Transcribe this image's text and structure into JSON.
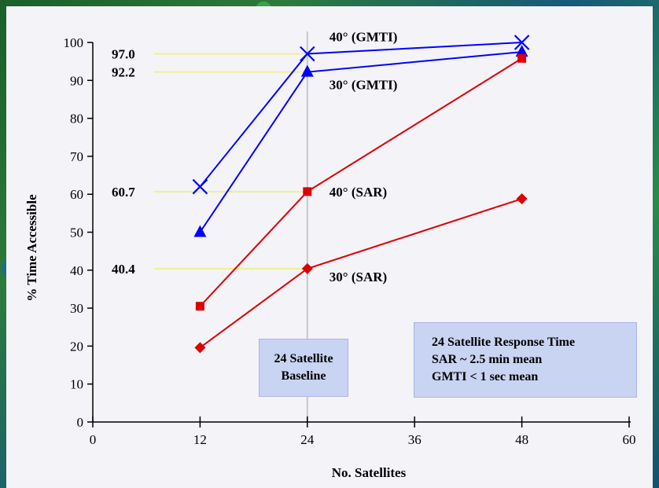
{
  "chart_data": {
    "type": "line",
    "xlabel": "No. Satellites",
    "ylabel": "% Time Accessible",
    "xlim": [
      0,
      60
    ],
    "ylim": [
      0,
      100
    ],
    "x_ticks": [
      0,
      12,
      24,
      36,
      48,
      60
    ],
    "y_ticks": [
      0,
      10,
      20,
      30,
      40,
      50,
      60,
      70,
      80,
      90,
      100
    ],
    "series": [
      {
        "name": "40° (GMTI)",
        "color": "#0000ff",
        "marker": "x",
        "x": [
          12,
          24,
          48
        ],
        "y": [
          62,
          97.0,
          100
        ]
      },
      {
        "name": "30° (GMTI)",
        "color": "#0000ff",
        "marker": "triangle",
        "x": [
          12,
          24,
          48
        ],
        "y": [
          50,
          92.2,
          97.5
        ]
      },
      {
        "name": "40° (SAR)",
        "color": "#dd0000",
        "marker": "square",
        "x": [
          12,
          24,
          48
        ],
        "y": [
          30.5,
          60.7,
          95.8
        ]
      },
      {
        "name": "30° (SAR)",
        "color": "#dd0000",
        "marker": "diamond",
        "x": [
          12,
          24,
          48
        ],
        "y": [
          19.6,
          40.4,
          58.8
        ]
      }
    ],
    "reference_lines": [
      {
        "label": "97.0",
        "y": 97.0
      },
      {
        "label": "92.2",
        "y": 92.2
      },
      {
        "label": "60.7",
        "y": 60.7
      },
      {
        "label": "40.4",
        "y": 40.4
      }
    ],
    "baseline_x": 24,
    "reference_line_color": "#f0f090",
    "baseline_color": "#c8c8c8"
  },
  "annotations": {
    "baseline_box": [
      "24 Satellite",
      "Baseline"
    ],
    "response_box": [
      "24 Satellite Response Time",
      "SAR ~ 2.5 min mean",
      "GMTI < 1 sec mean"
    ]
  }
}
